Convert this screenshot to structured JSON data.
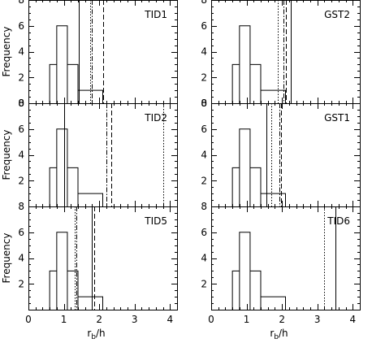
{
  "colors": {
    "line": "#000000",
    "background": "#ffffff"
  },
  "chart_data": [
    {
      "type": "bar",
      "subtype": "step-histogram",
      "label": "TID1",
      "column": 0,
      "row": 0,
      "xlim": [
        0,
        4.2
      ],
      "ylim": [
        0,
        8
      ],
      "yticks": [
        0,
        2,
        4,
        6,
        8
      ],
      "ylabel": "Frequency",
      "bins": [
        [
          0.6,
          0.8,
          3
        ],
        [
          0.8,
          1.1,
          6
        ],
        [
          1.1,
          1.4,
          3
        ],
        [
          1.4,
          2.1,
          1
        ]
      ],
      "markers": [
        {
          "x": 1.42,
          "style": "solid"
        },
        {
          "x": 1.75,
          "style": "dotted"
        },
        {
          "x": 1.8,
          "style": "dashdot"
        },
        {
          "x": 2.1,
          "style": "dashed"
        }
      ]
    },
    {
      "type": "bar",
      "subtype": "step-histogram",
      "label": "TID2",
      "column": 0,
      "row": 1,
      "xlim": [
        0,
        4.2
      ],
      "ylim": [
        0,
        8
      ],
      "yticks": [
        2,
        4,
        6,
        8
      ],
      "ylabel": "Frequency",
      "bins": [
        [
          0.6,
          0.8,
          3
        ],
        [
          0.8,
          1.1,
          6
        ],
        [
          1.1,
          1.4,
          3
        ],
        [
          1.4,
          2.1,
          1
        ]
      ],
      "markers": [
        {
          "x": 1.0,
          "style": "solid"
        },
        {
          "x": 2.2,
          "style": "dashdot"
        },
        {
          "x": 2.33,
          "style": "dashed"
        },
        {
          "x": 3.8,
          "style": "dotted"
        }
      ]
    },
    {
      "type": "bar",
      "subtype": "step-histogram",
      "label": "TID5",
      "column": 0,
      "row": 2,
      "xlim": [
        0,
        4.2
      ],
      "ylim": [
        0,
        8
      ],
      "yticks": [
        2,
        4,
        6,
        8
      ],
      "ylabel": "Frequency",
      "xlabel": "r",
      "xlabel_sub": "b",
      "xlabel_tail": "/h",
      "xticks": [
        0,
        1,
        2,
        3,
        4
      ],
      "bins": [
        [
          0.6,
          0.8,
          3
        ],
        [
          0.8,
          1.1,
          6
        ],
        [
          1.1,
          1.4,
          3
        ],
        [
          1.4,
          2.1,
          1
        ]
      ],
      "markers": [
        {
          "x": 1.3,
          "style": "dotted"
        },
        {
          "x": 1.35,
          "style": "dashdot"
        },
        {
          "x": 1.78,
          "style": "solid"
        },
        {
          "x": 1.85,
          "style": "dashed"
        }
      ]
    },
    {
      "type": "bar",
      "subtype": "step-histogram",
      "label": "GST2",
      "column": 1,
      "row": 0,
      "xlim": [
        0,
        4.2
      ],
      "ylim": [
        0,
        8
      ],
      "yticks": [
        0,
        2,
        4,
        6,
        8
      ],
      "bins": [
        [
          0.6,
          0.8,
          3
        ],
        [
          0.8,
          1.1,
          6
        ],
        [
          1.1,
          1.4,
          3
        ],
        [
          1.4,
          2.1,
          1
        ]
      ],
      "markers": [
        {
          "x": 1.88,
          "style": "dotted"
        },
        {
          "x": 2.05,
          "style": "dashdot"
        },
        {
          "x": 2.12,
          "style": "dashed"
        },
        {
          "x": 2.25,
          "style": "solid"
        }
      ]
    },
    {
      "type": "bar",
      "subtype": "step-histogram",
      "label": "GST1",
      "column": 1,
      "row": 1,
      "xlim": [
        0,
        4.2
      ],
      "ylim": [
        0,
        8
      ],
      "yticks": [
        2,
        4,
        6,
        8
      ],
      "bins": [
        [
          0.6,
          0.8,
          3
        ],
        [
          0.8,
          1.1,
          6
        ],
        [
          1.1,
          1.4,
          3
        ],
        [
          1.4,
          2.1,
          1
        ]
      ],
      "markers": [
        {
          "x": 1.55,
          "style": "solid"
        },
        {
          "x": 1.7,
          "style": "dotted"
        },
        {
          "x": 1.92,
          "style": "dashdot"
        },
        {
          "x": 1.98,
          "style": "dashed"
        }
      ]
    },
    {
      "type": "bar",
      "subtype": "step-histogram",
      "label": "TID6",
      "column": 1,
      "row": 2,
      "xlim": [
        0,
        4.2
      ],
      "ylim": [
        0,
        8
      ],
      "yticks": [
        2,
        4,
        6,
        8
      ],
      "xlabel": "r",
      "xlabel_sub": "b",
      "xlabel_tail": "/h",
      "xticks": [
        0,
        1,
        2,
        3,
        4
      ],
      "bins": [
        [
          0.6,
          0.8,
          3
        ],
        [
          0.8,
          1.1,
          6
        ],
        [
          1.1,
          1.4,
          3
        ],
        [
          1.4,
          2.1,
          1
        ]
      ],
      "markers": [
        {
          "x": 3.2,
          "style": "dotted"
        },
        {
          "x": 3.5,
          "style": "solid"
        }
      ]
    }
  ]
}
